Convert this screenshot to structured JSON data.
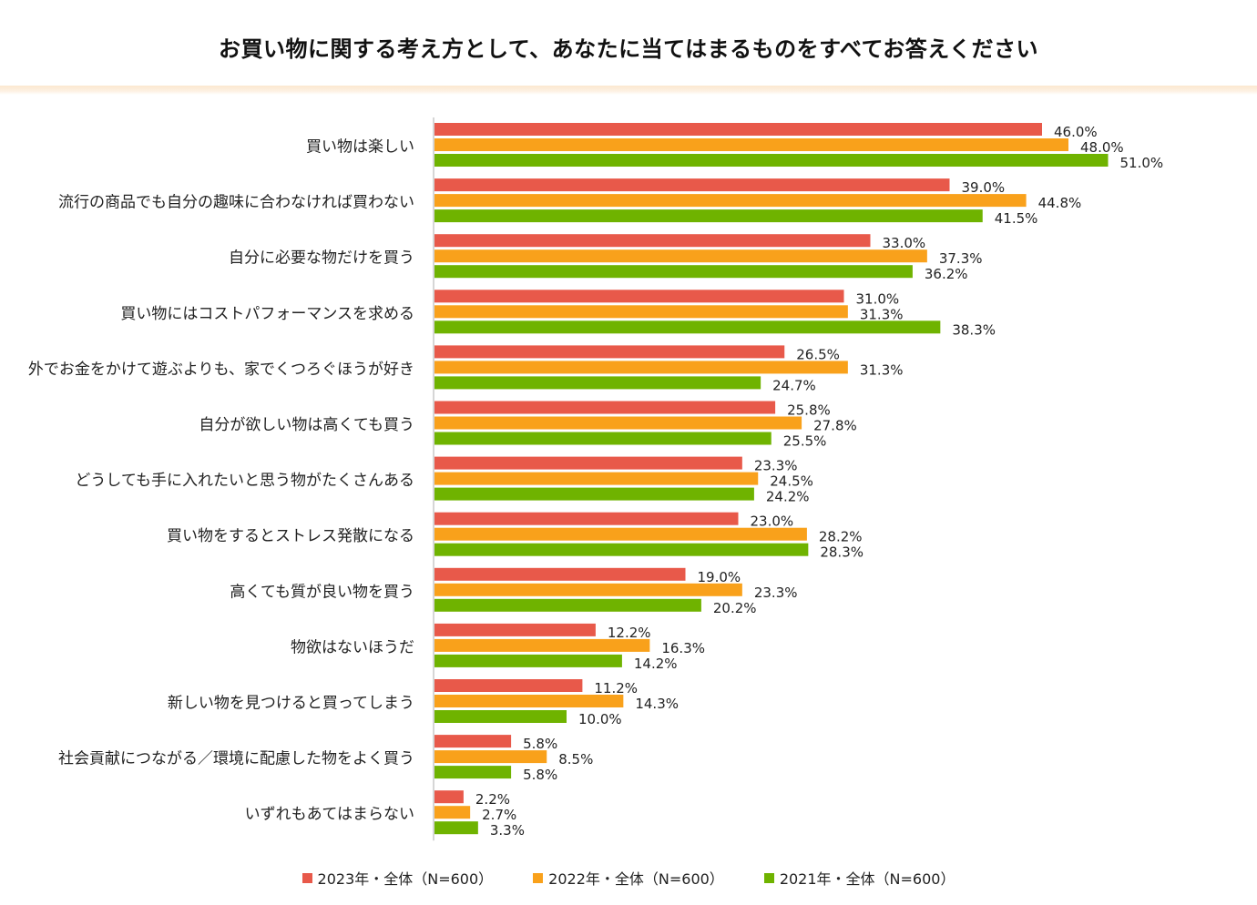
{
  "chart_data": {
    "type": "bar",
    "orientation": "horizontal",
    "title": "お買い物に関する考え方として、あなたに当てはまるものをすべてお答えください",
    "categories": [
      "買い物は楽しい",
      "流行の商品でも自分の趣味に合わなければ買わない",
      "自分に必要な物だけを買う",
      "買い物にはコストパフォーマンスを求める",
      "外でお金をかけて遊ぶよりも、家でくつろぐほうが好き",
      "自分が欲しい物は高くても買う",
      "どうしても手に入れたいと思う物がたくさんある",
      "買い物をするとストレス発散になる",
      "高くても質が良い物を買う",
      "物欲はないほうだ",
      "新しい物を見つけると買ってしまう",
      "社会貢献につながる／環境に配慮した物をよく買う",
      "いずれもあてはまらない"
    ],
    "series": [
      {
        "name": "2023年・全体（N=600）",
        "color": "#e8594a",
        "values": [
          46.0,
          39.0,
          33.0,
          31.0,
          26.5,
          25.8,
          23.3,
          23.0,
          19.0,
          12.2,
          11.2,
          5.8,
          2.2
        ],
        "labels": [
          "46.0%",
          "39.0%",
          "33.0%",
          "31.0%",
          "26.5%",
          "25.8%",
          "23.3%",
          "23.0%",
          "19.0%",
          "12.2%",
          "11.2%",
          "5.8%",
          "2.2%"
        ]
      },
      {
        "name": "2022年・全体（N=600）",
        "color": "#f9a11b",
        "values": [
          48.0,
          44.8,
          37.3,
          31.3,
          31.3,
          27.8,
          24.5,
          28.2,
          23.3,
          16.3,
          14.3,
          8.5,
          2.7
        ],
        "labels": [
          "48.0%",
          "44.8%",
          "37.3%",
          "31.3%",
          "31.3%",
          "27.8%",
          "24.5%",
          "28.2%",
          "23.3%",
          "16.3%",
          "14.3%",
          "8.5%",
          "2.7%"
        ]
      },
      {
        "name": "2021年・全体（N=600）",
        "color": "#6fb300",
        "values": [
          51.0,
          41.5,
          36.2,
          38.3,
          24.7,
          25.5,
          24.2,
          28.3,
          20.2,
          14.2,
          10.0,
          5.8,
          3.3
        ],
        "labels": [
          "51.0%",
          "41.5%",
          "36.2%",
          "38.3%",
          "24.7%",
          "25.5%",
          "24.2%",
          "28.3%",
          "20.2%",
          "14.2%",
          "10.0%",
          "5.8%",
          "3.3%"
        ]
      }
    ],
    "xlim": [
      0,
      100
    ],
    "grid": false,
    "legend_position": "bottom"
  }
}
